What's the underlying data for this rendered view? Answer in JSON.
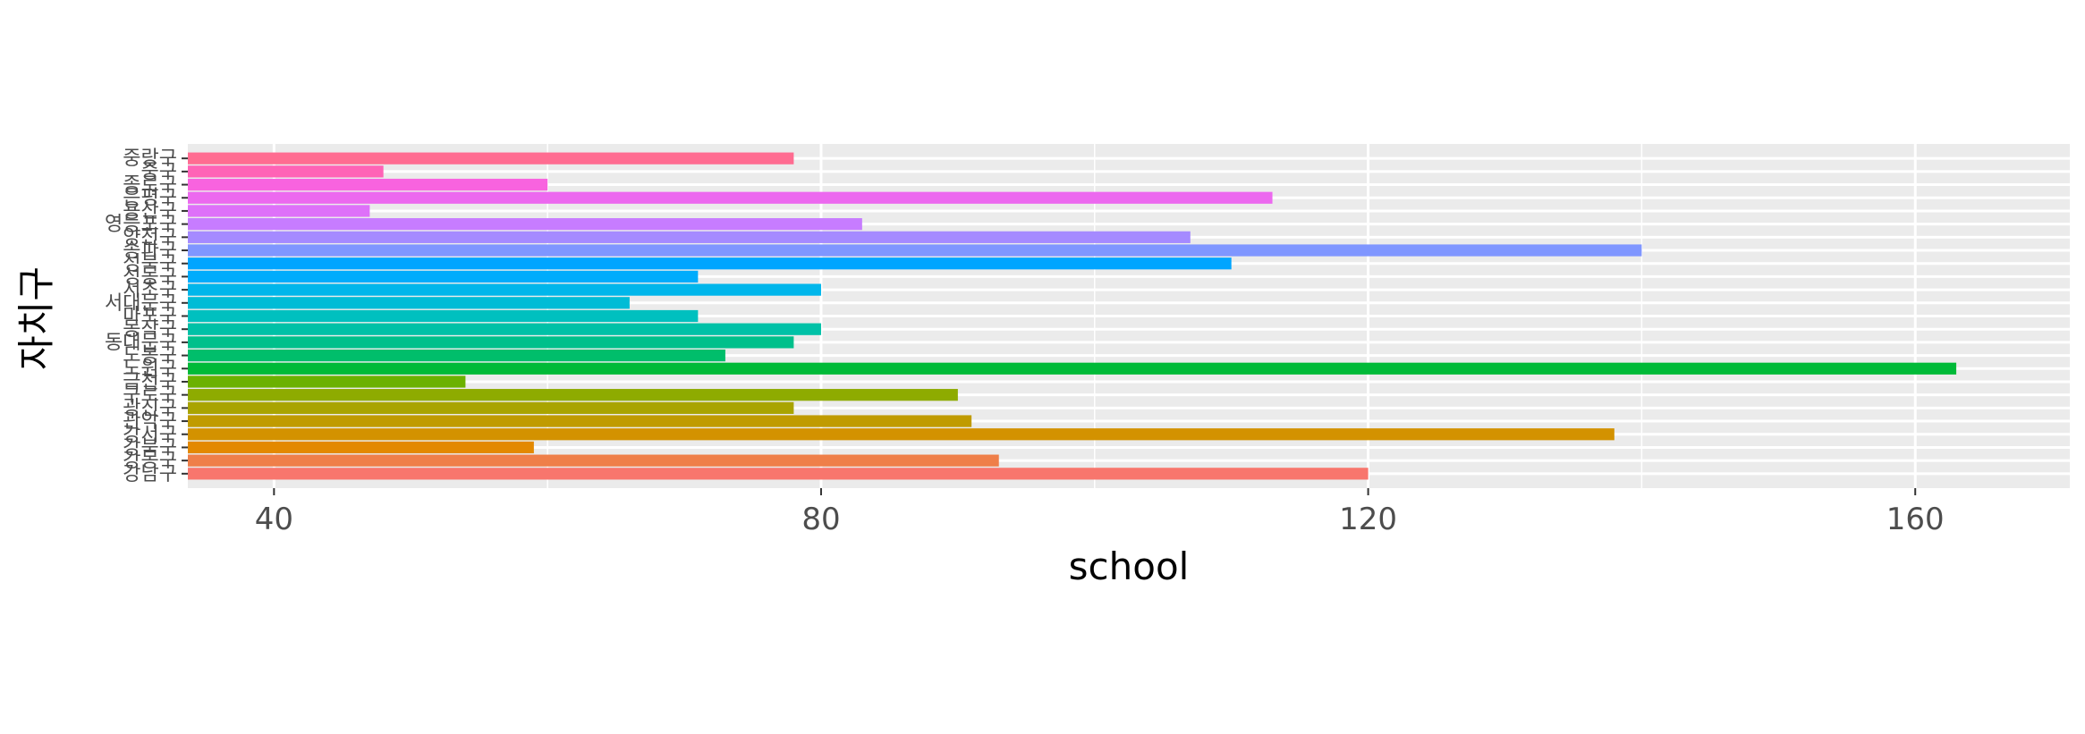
{
  "chart_data": {
    "type": "bar",
    "orientation": "horizontal",
    "xlabel": "school",
    "ylabel": "자치구",
    "xlim": [
      33.7,
      171.3
    ],
    "xticks": [
      40,
      80,
      120,
      160
    ],
    "grid": true,
    "legend": "none",
    "panel_background": "#ebebeb",
    "grid_color": "#ffffff",
    "bars": [
      {
        "category": "강남구",
        "value": 120,
        "color": "#F8766D"
      },
      {
        "category": "강동구",
        "value": 93,
        "color": "#EF7F49"
      },
      {
        "category": "강북구",
        "value": 59,
        "color": "#E38900"
      },
      {
        "category": "강서구",
        "value": 138,
        "color": "#D39200"
      },
      {
        "category": "관악구",
        "value": 91,
        "color": "#C09B00"
      },
      {
        "category": "광진구",
        "value": 78,
        "color": "#A9A400"
      },
      {
        "category": "구로구",
        "value": 90,
        "color": "#8EAB00"
      },
      {
        "category": "금천구",
        "value": 54,
        "color": "#6BB100"
      },
      {
        "category": "노원구",
        "value": 163,
        "color": "#00BA38"
      },
      {
        "category": "도봉구",
        "value": 73,
        "color": "#00BE6B"
      },
      {
        "category": "동대문구",
        "value": 78,
        "color": "#00C08B"
      },
      {
        "category": "동작구",
        "value": 80,
        "color": "#00C1A7"
      },
      {
        "category": "마포구",
        "value": 71,
        "color": "#00C0BF"
      },
      {
        "category": "서대문구",
        "value": 66,
        "color": "#00BCD6"
      },
      {
        "category": "서초구",
        "value": 80,
        "color": "#00B6EB"
      },
      {
        "category": "성동구",
        "value": 71,
        "color": "#00ACFC"
      },
      {
        "category": "성북구",
        "value": 110,
        "color": "#00A5FF"
      },
      {
        "category": "송파구",
        "value": 140,
        "color": "#7F96FF"
      },
      {
        "category": "양천구",
        "value": 107,
        "color": "#A58AFF"
      },
      {
        "category": "영등포구",
        "value": 83,
        "color": "#C77CFF"
      },
      {
        "category": "용산구",
        "value": 47,
        "color": "#DE71F9"
      },
      {
        "category": "은평구",
        "value": 113,
        "color": "#EC69EF"
      },
      {
        "category": "종로구",
        "value": 60,
        "color": "#F863DF"
      },
      {
        "category": "중구",
        "value": 48,
        "color": "#FF63B6"
      },
      {
        "category": "중랑구",
        "value": 78,
        "color": "#FF6C91"
      }
    ]
  }
}
